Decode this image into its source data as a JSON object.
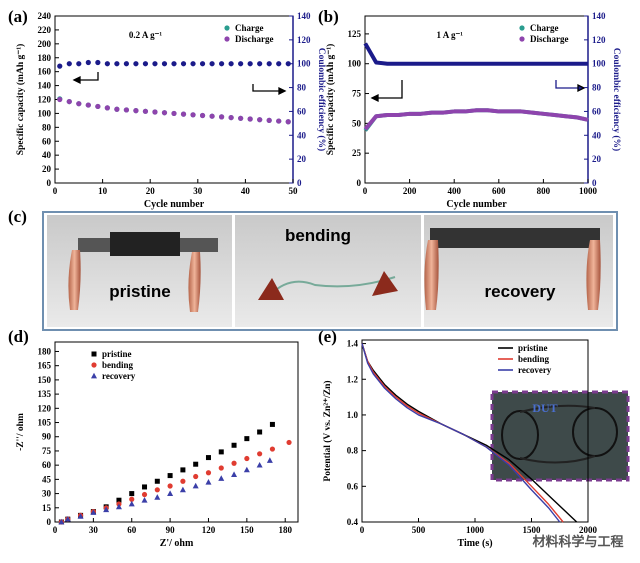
{
  "chart_data": [
    {
      "type": "scatter",
      "panel_label": "(a)",
      "annotation": "0.2 A g⁻¹",
      "x_label": "Cycle number",
      "y_label": "Specific capacity (mAh g⁻¹)",
      "y2_label": "Coulombic efficiency (%)",
      "xlim": [
        0,
        50
      ],
      "xticks": [
        0,
        10,
        20,
        30,
        40,
        50
      ],
      "ylim": [
        0,
        240
      ],
      "yticks": [
        0,
        20,
        40,
        60,
        80,
        100,
        120,
        140,
        160,
        180,
        200,
        220,
        240
      ],
      "y2lim": [
        0,
        140
      ],
      "y2ticks": [
        0,
        20,
        40,
        60,
        80,
        100,
        120,
        140
      ],
      "legend": "upper right",
      "x": [
        1,
        3,
        5,
        7,
        9,
        11,
        13,
        15,
        17,
        19,
        21,
        23,
        25,
        27,
        29,
        31,
        33,
        35,
        37,
        39,
        41,
        43,
        45,
        47,
        49
      ],
      "series": [
        {
          "name": "Charge",
          "color": "#2a9d8f",
          "marker": "circle",
          "values": [
            121,
            117,
            114,
            112,
            110,
            108,
            106,
            105,
            104,
            103,
            102,
            101,
            100,
            99,
            98,
            97,
            96,
            95,
            94,
            93,
            92,
            91,
            90,
            89,
            88
          ]
        },
        {
          "name": "Discharge",
          "color": "#8e44ad",
          "marker": "circle",
          "values": [
            120,
            117,
            114,
            112,
            110,
            108,
            106,
            105,
            104,
            103,
            102,
            101,
            100,
            99,
            98,
            97,
            96,
            95,
            94,
            93,
            92,
            91,
            90,
            89,
            88
          ]
        },
        {
          "color": "#1b1b8a",
          "marker": "circle",
          "axis": "y2",
          "values": [
            98,
            100,
            100,
            101,
            101,
            100,
            100,
            100,
            100,
            100,
            100,
            100,
            100,
            100,
            100,
            100,
            100,
            100,
            100,
            100,
            100,
            100,
            100,
            100,
            100
          ]
        }
      ]
    },
    {
      "type": "scatter",
      "panel_label": "(b)",
      "annotation": "1 A g⁻¹",
      "x_label": "Cycle number",
      "y_label": "Specific capacity (mAh g⁻¹)",
      "y2_label": "Coulombic efficiency (%)",
      "xlim": [
        0,
        1000
      ],
      "xticks": [
        0,
        200,
        400,
        600,
        800,
        1000
      ],
      "ylim": [
        0,
        140
      ],
      "yticks": [
        0,
        25,
        50,
        75,
        100,
        125
      ],
      "y2lim": [
        0,
        140
      ],
      "y2ticks": [
        0,
        20,
        40,
        60,
        80,
        100,
        120,
        140
      ],
      "legend": "upper right",
      "x": [
        1,
        50,
        100,
        150,
        200,
        250,
        300,
        350,
        400,
        450,
        500,
        550,
        600,
        650,
        700,
        750,
        800,
        850,
        900,
        950,
        1000
      ],
      "series": [
        {
          "name": "Charge",
          "color": "#2a9d8f",
          "marker": "circle",
          "line": true,
          "values": [
            44,
            56,
            57,
            57,
            58,
            58,
            59,
            59,
            60,
            60,
            61,
            61,
            60,
            60,
            60,
            59,
            58,
            57,
            56,
            55,
            53
          ]
        },
        {
          "name": "Discharge",
          "color": "#8e44ad",
          "marker": "circle",
          "line": true,
          "values": [
            45,
            56,
            57,
            57,
            58,
            58,
            59,
            59,
            60,
            60,
            61,
            61,
            60,
            60,
            60,
            59,
            58,
            57,
            56,
            55,
            53
          ]
        },
        {
          "color": "#1b1b8a",
          "marker": "circle",
          "line": true,
          "axis": "y2",
          "values": [
            117,
            101,
            100,
            100,
            100,
            100,
            100,
            100,
            100,
            100,
            100,
            100,
            100,
            100,
            100,
            100,
            100,
            100,
            100,
            100,
            100
          ]
        }
      ]
    },
    {
      "type": "scatter",
      "panel_label": "(d)",
      "x_label": "Z'/ ohm",
      "y_label": "-Z''/ ohm",
      "xlim": [
        0,
        190
      ],
      "xticks": [
        0,
        30,
        60,
        90,
        120,
        150,
        180
      ],
      "ylim": [
        0,
        190
      ],
      "yticks": [
        0,
        15,
        30,
        45,
        60,
        75,
        90,
        105,
        120,
        135,
        150,
        165,
        180
      ],
      "legend": "upper left",
      "series": [
        {
          "name": "pristine",
          "color": "#000000",
          "marker": "square",
          "x": [
            5,
            10,
            20,
            30,
            40,
            50,
            60,
            70,
            80,
            90,
            100,
            110,
            120,
            130,
            140,
            150,
            160,
            170
          ],
          "values": [
            0,
            3,
            7,
            11,
            16,
            23,
            30,
            37,
            43,
            49,
            55,
            61,
            68,
            74,
            81,
            88,
            95,
            103
          ]
        },
        {
          "name": "bending",
          "color": "#e03c31",
          "marker": "circle",
          "x": [
            5,
            10,
            20,
            30,
            40,
            50,
            60,
            70,
            80,
            90,
            100,
            110,
            120,
            130,
            140,
            150,
            160,
            170,
            183
          ],
          "values": [
            0,
            3,
            7,
            11,
            15,
            19,
            24,
            29,
            34,
            38,
            43,
            48,
            52,
            57,
            62,
            67,
            72,
            77,
            84
          ]
        },
        {
          "name": "recovery",
          "color": "#3b3fa8",
          "marker": "triangle",
          "x": [
            5,
            10,
            20,
            30,
            40,
            50,
            60,
            70,
            80,
            90,
            100,
            110,
            120,
            130,
            140,
            150,
            160,
            168
          ],
          "values": [
            0,
            3,
            6,
            10,
            13,
            16,
            19,
            23,
            26,
            30,
            34,
            38,
            42,
            46,
            50,
            55,
            60,
            65
          ]
        }
      ]
    },
    {
      "type": "line",
      "panel_label": "(e)",
      "inset_label": "DUT",
      "x_label": "Time (s)",
      "y_label": "Potential (V vs. Zn²⁺/Zn)",
      "xlim": [
        0,
        2000
      ],
      "xticks": [
        0,
        500,
        1000,
        1500,
        2000
      ],
      "ylim": [
        0.4,
        1.42
      ],
      "yticks": [
        0.4,
        0.6,
        0.8,
        {
          "value": 1,
          "label": "1.0"
        },
        1.2,
        1.4
      ],
      "legend": "upper right",
      "series": [
        {
          "name": "pristine",
          "color": "#000000",
          "line": true,
          "x": [
            0,
            50,
            100,
            200,
            300,
            400,
            500,
            700,
            900,
            1100,
            1300,
            1500,
            1700,
            1900
          ],
          "values": [
            1.4,
            1.3,
            1.25,
            1.17,
            1.11,
            1.06,
            1.02,
            0.95,
            0.89,
            0.83,
            0.75,
            0.64,
            0.52,
            0.4
          ]
        },
        {
          "name": "bending",
          "color": "#e03c31",
          "line": true,
          "x": [
            0,
            50,
            100,
            200,
            300,
            400,
            500,
            700,
            900,
            1100,
            1300,
            1500,
            1650,
            1780
          ],
          "values": [
            1.4,
            1.3,
            1.24,
            1.16,
            1.1,
            1.05,
            1.01,
            0.95,
            0.89,
            0.82,
            0.73,
            0.6,
            0.5,
            0.4
          ]
        },
        {
          "name": "recovery",
          "color": "#3b3fa8",
          "line": true,
          "x": [
            0,
            50,
            100,
            200,
            300,
            400,
            500,
            700,
            900,
            1100,
            1300,
            1500,
            1650,
            1750
          ],
          "values": [
            1.4,
            1.29,
            1.23,
            1.15,
            1.09,
            1.04,
            1.0,
            0.95,
            0.89,
            0.82,
            0.72,
            0.58,
            0.48,
            0.4
          ]
        }
      ]
    }
  ],
  "photo_panel": {
    "label": "(c)",
    "captions": [
      "pristine",
      "bending",
      "recovery"
    ]
  },
  "watermark": "材料科学与工程"
}
